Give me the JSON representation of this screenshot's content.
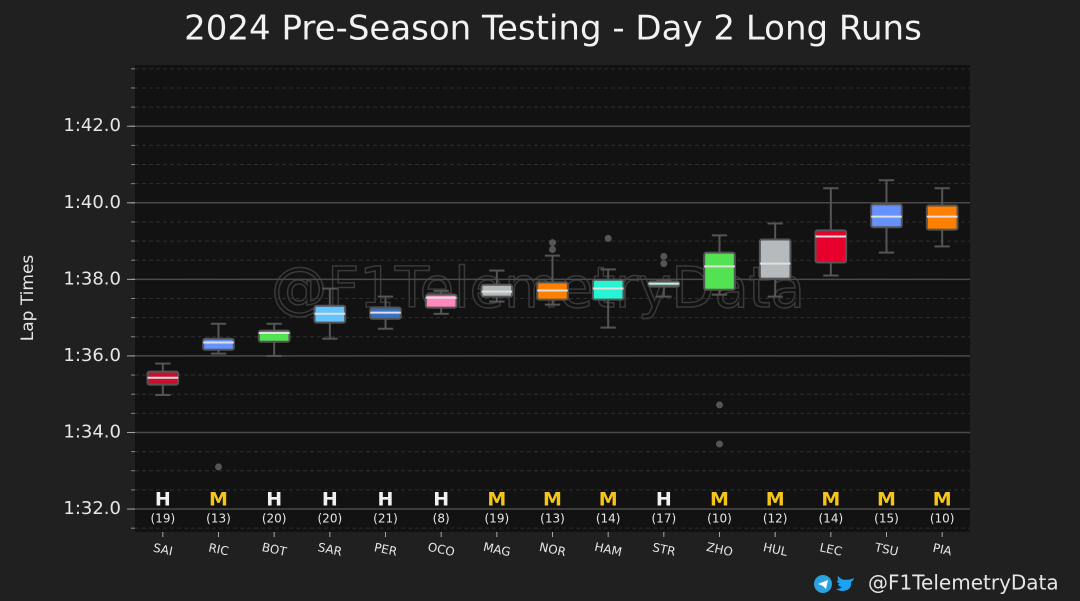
{
  "chart_data": {
    "type": "box",
    "title": "2024 Pre-Season Testing - Day 2 Long Runs",
    "ylabel": "Lap Times",
    "watermark": "@F1TelemetryData",
    "footer": "@F1TelemetryData",
    "ylim": [
      91.4,
      103.6
    ],
    "yticks": [
      {
        "value": 92,
        "label": "1:32.0"
      },
      {
        "value": 94,
        "label": "1:34.0"
      },
      {
        "value": 96,
        "label": "1:36.0"
      },
      {
        "value": 98,
        "label": "1:38.0"
      },
      {
        "value": 100,
        "label": "1:40.0"
      },
      {
        "value": 102,
        "label": "1:42.0"
      }
    ],
    "grid": true,
    "boxes": [
      {
        "name": "SAI",
        "color": "#c8102e",
        "whisker_low": 94.98,
        "q1": 95.25,
        "median": 95.43,
        "q3": 95.59,
        "whisker_high": 95.8,
        "outliers": [],
        "compound": "H",
        "laps": "(19)"
      },
      {
        "name": "RIC",
        "color": "#6692ff",
        "whisker_low": 96.06,
        "q1": 96.16,
        "median": 96.35,
        "q3": 96.45,
        "whisker_high": 96.84,
        "outliers": [
          93.1
        ],
        "compound": "M",
        "laps": "(13)"
      },
      {
        "name": "BOT",
        "color": "#52e252",
        "whisker_low": 96.0,
        "q1": 96.37,
        "median": 96.6,
        "q3": 96.66,
        "whisker_high": 96.84,
        "outliers": [],
        "compound": "H",
        "laps": "(20)"
      },
      {
        "name": "SAR",
        "color": "#64c4ff",
        "whisker_low": 96.45,
        "q1": 96.87,
        "median": 97.1,
        "q3": 97.31,
        "whisker_high": 97.76,
        "outliers": [],
        "compound": "H",
        "laps": "(20)"
      },
      {
        "name": "PER",
        "color": "#3671c6",
        "whisker_low": 96.71,
        "q1": 96.97,
        "median": 97.13,
        "q3": 97.26,
        "whisker_high": 97.55,
        "outliers": [],
        "compound": "H",
        "laps": "(21)"
      },
      {
        "name": "OCO",
        "color": "#ff87bc",
        "whisker_low": 97.1,
        "q1": 97.26,
        "median": 97.52,
        "q3": 97.6,
        "whisker_high": 97.7,
        "outliers": [],
        "compound": "H",
        "laps": "(8)"
      },
      {
        "name": "MAG",
        "color": "#b6babd",
        "whisker_low": 97.42,
        "q1": 97.55,
        "median": 97.68,
        "q3": 97.86,
        "whisker_high": 98.23,
        "outliers": [],
        "compound": "M",
        "laps": "(19)"
      },
      {
        "name": "NOR",
        "color": "#ff8000",
        "whisker_low": 97.34,
        "q1": 97.47,
        "median": 97.71,
        "q3": 97.92,
        "whisker_high": 98.62,
        "outliers": [
          98.78,
          98.96
        ],
        "compound": "M",
        "laps": "(13)"
      },
      {
        "name": "HAM",
        "color": "#27f4d2",
        "whisker_low": 96.74,
        "q1": 97.47,
        "median": 97.76,
        "q3": 97.99,
        "whisker_high": 98.26,
        "outliers": [
          99.07
        ],
        "compound": "M",
        "laps": "(14)"
      },
      {
        "name": "STR",
        "color": "#229971",
        "whisker_low": 97.55,
        "q1": 97.81,
        "median": 97.89,
        "q3": 97.94,
        "whisker_high": 97.97,
        "outliers": [
          98.41,
          98.6
        ],
        "compound": "H",
        "laps": "(17)"
      },
      {
        "name": "ZHO",
        "color": "#52e252",
        "whisker_low": 97.6,
        "q1": 97.73,
        "median": 98.34,
        "q3": 98.7,
        "whisker_high": 99.15,
        "outliers": [
          94.72,
          93.7
        ],
        "compound": "M",
        "laps": "(10)"
      },
      {
        "name": "HUL",
        "color": "#b6babd",
        "whisker_low": 97.55,
        "q1": 98.02,
        "median": 98.41,
        "q3": 99.04,
        "whisker_high": 99.46,
        "outliers": [],
        "compound": "M",
        "laps": "(12)"
      },
      {
        "name": "LEC",
        "color": "#e8002d",
        "whisker_low": 98.1,
        "q1": 98.44,
        "median": 99.12,
        "q3": 99.28,
        "whisker_high": 100.38,
        "outliers": [],
        "compound": "M",
        "laps": "(14)"
      },
      {
        "name": "TSU",
        "color": "#6692ff",
        "whisker_low": 98.7,
        "q1": 99.36,
        "median": 99.64,
        "q3": 99.96,
        "whisker_high": 100.59,
        "outliers": [],
        "compound": "M",
        "laps": "(15)"
      },
      {
        "name": "PIA",
        "color": "#ff8000",
        "whisker_low": 98.86,
        "q1": 99.3,
        "median": 99.64,
        "q3": 99.93,
        "whisker_high": 100.38,
        "outliers": [],
        "compound": "M",
        "laps": "(10)"
      }
    ]
  }
}
